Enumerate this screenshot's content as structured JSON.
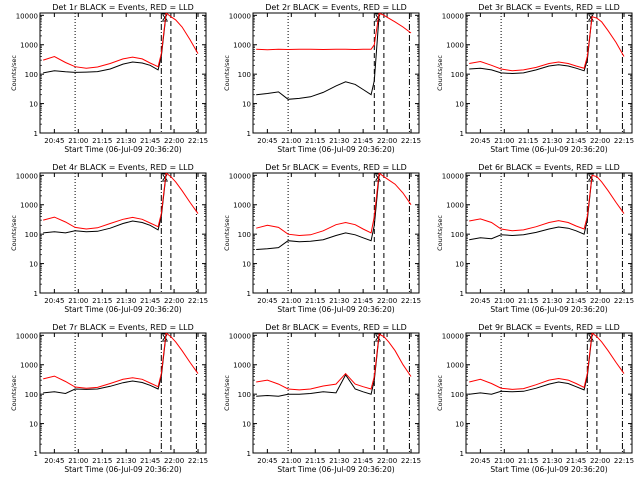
{
  "figure": {
    "xlabel": "Start Time (06-Jul-09 20:36:20)",
    "ylabel": "Counts/sec",
    "time_ticks": [
      "20:45",
      "21:00",
      "21:15",
      "21:30",
      "21:45",
      "22:00",
      "22:15"
    ],
    "y_ticks": [
      "1",
      "10",
      "100",
      "1000",
      "10000"
    ],
    "colors": {
      "events": "#000000",
      "lld": "#ff0000",
      "axes": "#000000",
      "background": "#ffffff"
    }
  },
  "chart_data": [
    {
      "type": "line",
      "title": "Det 1r BLACK = Events, RED = LLD",
      "xlabel": "Start Time (06-Jul-09 20:36:20)",
      "ylabel": "Counts/sec",
      "xlim": [
        "20:36",
        "22:20"
      ],
      "ylim": [
        1,
        12000
      ],
      "yscale": "log",
      "x": [
        "20:38",
        "20:45",
        "20:52",
        "20:58",
        "21:05",
        "21:12",
        "21:20",
        "21:28",
        "21:34",
        "21:40",
        "21:45",
        "21:50",
        "21:52",
        "21:55",
        "21:58",
        "22:01",
        "22:05",
        "22:10",
        "22:15"
      ],
      "series": [
        {
          "name": "Events",
          "values": [
            110,
            130,
            120,
            115,
            118,
            122,
            150,
            220,
            260,
            240,
            200,
            140,
            400,
            11000,
            null,
            null,
            null,
            null,
            null
          ]
        },
        {
          "name": "LLD",
          "values": [
            300,
            400,
            250,
            180,
            160,
            175,
            230,
            330,
            380,
            330,
            240,
            180,
            500,
            12000,
            9000,
            7000,
            4000,
            1500,
            500
          ]
        }
      ],
      "vlines": [
        {
          "x": "20:58",
          "style": "dotted"
        },
        {
          "x": "21:52",
          "style": "dash-dot"
        },
        {
          "x": "21:58",
          "style": "dashed"
        },
        {
          "x": "22:14",
          "style": "dash-dot"
        }
      ]
    },
    {
      "type": "line",
      "title": "Det 2r BLACK = Events, RED = LLD",
      "xlabel": "Start Time (06-Jul-09 20:36:20)",
      "ylabel": "Counts/sec",
      "xlim": [
        "20:36",
        "22:20"
      ],
      "ylim": [
        1,
        12000
      ],
      "yscale": "log",
      "x": [
        "20:38",
        "20:45",
        "20:52",
        "20:58",
        "21:05",
        "21:12",
        "21:20",
        "21:28",
        "21:34",
        "21:40",
        "21:45",
        "21:50",
        "21:52",
        "21:55",
        "21:58",
        "22:01",
        "22:05",
        "22:10",
        "22:15"
      ],
      "series": [
        {
          "name": "Events",
          "values": [
            20,
            22,
            25,
            14,
            15,
            17,
            24,
            40,
            55,
            45,
            30,
            20,
            60,
            10000,
            null,
            null,
            null,
            null,
            null
          ]
        },
        {
          "name": "LLD",
          "values": [
            700,
            680,
            700,
            690,
            700,
            700,
            690,
            700,
            700,
            690,
            700,
            700,
            1000,
            12000,
            10000,
            8000,
            6000,
            4000,
            2500
          ]
        }
      ],
      "vlines": [
        {
          "x": "20:58",
          "style": "dotted"
        },
        {
          "x": "21:52",
          "style": "dashed"
        },
        {
          "x": "21:58",
          "style": "dashed"
        },
        {
          "x": "22:14",
          "style": "dash-dot"
        }
      ]
    },
    {
      "type": "line",
      "title": "Det 3r BLACK = Events, RED = LLD",
      "xlabel": "Start Time (06-Jul-09 20:36:20)",
      "ylabel": "Counts/sec",
      "xlim": [
        "20:36",
        "22:20"
      ],
      "ylim": [
        1,
        12000
      ],
      "yscale": "log",
      "x": [
        "20:38",
        "20:45",
        "20:52",
        "20:58",
        "21:05",
        "21:12",
        "21:20",
        "21:28",
        "21:34",
        "21:40",
        "21:45",
        "21:50",
        "21:52",
        "21:55",
        "21:58",
        "22:01",
        "22:05",
        "22:10",
        "22:15"
      ],
      "series": [
        {
          "name": "Events",
          "values": [
            150,
            160,
            140,
            110,
            105,
            110,
            140,
            190,
            210,
            190,
            160,
            130,
            300,
            10000,
            null,
            null,
            null,
            null,
            null
          ]
        },
        {
          "name": "LLD",
          "values": [
            230,
            270,
            200,
            150,
            130,
            140,
            170,
            230,
            260,
            230,
            190,
            160,
            400,
            9000,
            8000,
            6000,
            3000,
            1200,
            400
          ]
        }
      ],
      "vlines": [
        {
          "x": "20:58",
          "style": "dotted"
        },
        {
          "x": "21:52",
          "style": "dash-dot"
        },
        {
          "x": "21:58",
          "style": "dashed"
        },
        {
          "x": "22:14",
          "style": "dash-dot"
        }
      ]
    },
    {
      "type": "line",
      "title": "Det 4r BLACK = Events, RED = LLD",
      "xlabel": "Start Time (06-Jul-09 20:36:20)",
      "ylabel": "Counts/sec",
      "xlim": [
        "20:36",
        "22:20"
      ],
      "ylim": [
        1,
        12000
      ],
      "yscale": "log",
      "x": [
        "20:38",
        "20:45",
        "20:52",
        "20:58",
        "21:05",
        "21:12",
        "21:20",
        "21:28",
        "21:34",
        "21:40",
        "21:45",
        "21:50",
        "21:52",
        "21:55",
        "21:58",
        "22:01",
        "22:05",
        "22:10",
        "22:15"
      ],
      "series": [
        {
          "name": "Events",
          "values": [
            110,
            120,
            110,
            130,
            120,
            125,
            160,
            230,
            280,
            250,
            200,
            140,
            400,
            11000,
            null,
            null,
            null,
            null,
            null
          ]
        },
        {
          "name": "LLD",
          "values": [
            300,
            380,
            260,
            170,
            150,
            165,
            230,
            320,
            370,
            320,
            240,
            180,
            500,
            12000,
            9000,
            6000,
            3000,
            1200,
            500
          ]
        }
      ],
      "vlines": [
        {
          "x": "20:58",
          "style": "dotted"
        },
        {
          "x": "21:52",
          "style": "dash-dot"
        },
        {
          "x": "21:58",
          "style": "dashed"
        },
        {
          "x": "22:14",
          "style": "dash-dot"
        }
      ]
    },
    {
      "type": "line",
      "title": "Det 5r BLACK = Events, RED = LLD",
      "xlabel": "Start Time (06-Jul-09 20:36:20)",
      "ylabel": "Counts/sec",
      "xlim": [
        "20:36",
        "22:20"
      ],
      "ylim": [
        1,
        12000
      ],
      "yscale": "log",
      "x": [
        "20:38",
        "20:45",
        "20:52",
        "20:58",
        "21:05",
        "21:12",
        "21:20",
        "21:28",
        "21:34",
        "21:40",
        "21:45",
        "21:50",
        "21:52",
        "21:55",
        "21:58",
        "22:01",
        "22:05",
        "22:10",
        "22:15"
      ],
      "series": [
        {
          "name": "Events",
          "values": [
            30,
            32,
            35,
            60,
            55,
            57,
            65,
            90,
            110,
            95,
            75,
            60,
            200,
            10000,
            null,
            null,
            null,
            null,
            null
          ]
        },
        {
          "name": "LLD",
          "values": [
            160,
            200,
            170,
            100,
            90,
            95,
            130,
            210,
            250,
            210,
            150,
            110,
            400,
            12000,
            9000,
            7000,
            5000,
            2500,
            1000
          ]
        }
      ],
      "vlines": [
        {
          "x": "20:58",
          "style": "dotted"
        },
        {
          "x": "21:52",
          "style": "dashed"
        },
        {
          "x": "21:58",
          "style": "dashed"
        },
        {
          "x": "22:14",
          "style": "dash-dot"
        }
      ]
    },
    {
      "type": "line",
      "title": "Det 6r BLACK = Events, RED = LLD",
      "xlabel": "Start Time (06-Jul-09 20:36:20)",
      "ylabel": "Counts/sec",
      "xlim": [
        "20:36",
        "22:20"
      ],
      "ylim": [
        1,
        12000
      ],
      "yscale": "log",
      "x": [
        "20:38",
        "20:45",
        "20:52",
        "20:58",
        "21:05",
        "21:12",
        "21:20",
        "21:28",
        "21:34",
        "21:40",
        "21:45",
        "21:50",
        "21:52",
        "21:55",
        "21:58",
        "22:01",
        "22:05",
        "22:10",
        "22:15"
      ],
      "series": [
        {
          "name": "Events",
          "values": [
            65,
            75,
            70,
            95,
            90,
            95,
            115,
            150,
            175,
            160,
            130,
            100,
            300,
            10000,
            null,
            null,
            null,
            null,
            null
          ]
        },
        {
          "name": "LLD",
          "values": [
            280,
            330,
            250,
            150,
            130,
            140,
            180,
            250,
            290,
            250,
            190,
            150,
            400,
            10000,
            9000,
            6000,
            3000,
            1200,
            500
          ]
        }
      ],
      "vlines": [
        {
          "x": "20:58",
          "style": "dotted"
        },
        {
          "x": "21:52",
          "style": "dash-dot"
        },
        {
          "x": "21:58",
          "style": "dashed"
        },
        {
          "x": "22:14",
          "style": "dash-dot"
        }
      ]
    },
    {
      "type": "line",
      "title": "Det 7r BLACK = Events, RED = LLD",
      "xlabel": "Start Time (06-Jul-09 20:36:20)",
      "ylabel": "Counts/sec",
      "xlim": [
        "20:36",
        "22:20"
      ],
      "ylim": [
        1,
        12000
      ],
      "yscale": "log",
      "x": [
        "20:38",
        "20:45",
        "20:52",
        "20:58",
        "21:05",
        "21:12",
        "21:20",
        "21:28",
        "21:34",
        "21:40",
        "21:45",
        "21:50",
        "21:52",
        "21:55",
        "21:58",
        "22:01",
        "22:05",
        "22:10",
        "22:15"
      ],
      "series": [
        {
          "name": "Events",
          "values": [
            110,
            120,
            105,
            150,
            145,
            150,
            185,
            245,
            280,
            250,
            200,
            150,
            400,
            11000,
            null,
            null,
            null,
            null,
            null
          ]
        },
        {
          "name": "LLD",
          "values": [
            330,
            410,
            270,
            175,
            160,
            170,
            230,
            320,
            360,
            320,
            240,
            180,
            500,
            12000,
            9000,
            6000,
            3000,
            1200,
            500
          ]
        }
      ],
      "vlines": [
        {
          "x": "20:58",
          "style": "dotted"
        },
        {
          "x": "21:52",
          "style": "dash-dot"
        },
        {
          "x": "21:58",
          "style": "dashed"
        },
        {
          "x": "22:14",
          "style": "dash-dot"
        }
      ]
    },
    {
      "type": "line",
      "title": "Det 8r BLACK = Events, RED = LLD",
      "xlabel": "Start Time (06-Jul-09 20:36:20)",
      "ylabel": "Counts/sec",
      "xlim": [
        "20:36",
        "22:20"
      ],
      "ylim": [
        1,
        12000
      ],
      "yscale": "log",
      "x": [
        "20:38",
        "20:45",
        "20:52",
        "20:58",
        "21:05",
        "21:12",
        "21:20",
        "21:28",
        "21:34",
        "21:40",
        "21:45",
        "21:50",
        "21:52",
        "21:55",
        "21:58",
        "22:01",
        "22:05",
        "22:10",
        "22:15"
      ],
      "series": [
        {
          "name": "Events",
          "values": [
            85,
            90,
            85,
            100,
            100,
            105,
            120,
            110,
            450,
            150,
            120,
            100,
            300,
            10000,
            null,
            null,
            null,
            null,
            null
          ]
        },
        {
          "name": "LLD",
          "values": [
            260,
            300,
            220,
            150,
            140,
            150,
            190,
            220,
            500,
            220,
            180,
            150,
            400,
            11000,
            9000,
            6000,
            3000,
            1000,
            400
          ]
        }
      ],
      "vlines": [
        {
          "x": "20:58",
          "style": "dotted"
        },
        {
          "x": "21:52",
          "style": "dashed"
        },
        {
          "x": "21:58",
          "style": "dashed"
        },
        {
          "x": "22:14",
          "style": "dash-dot"
        }
      ]
    },
    {
      "type": "line",
      "title": "Det 9r BLACK = Events, RED = LLD",
      "xlabel": "Start Time (06-Jul-09 20:36:20)",
      "ylabel": "Counts/sec",
      "xlim": [
        "20:36",
        "22:20"
      ],
      "ylim": [
        1,
        12000
      ],
      "yscale": "log",
      "x": [
        "20:38",
        "20:45",
        "20:52",
        "20:58",
        "21:05",
        "21:12",
        "21:20",
        "21:28",
        "21:34",
        "21:40",
        "21:45",
        "21:50",
        "21:52",
        "21:55",
        "21:58",
        "22:01",
        "22:05",
        "22:10",
        "22:15"
      ],
      "series": [
        {
          "name": "Events",
          "values": [
            100,
            110,
            100,
            125,
            120,
            125,
            160,
            220,
            260,
            230,
            180,
            140,
            400,
            11000,
            null,
            null,
            null,
            null,
            null
          ]
        },
        {
          "name": "LLD",
          "values": [
            260,
            320,
            230,
            160,
            145,
            155,
            210,
            300,
            340,
            300,
            230,
            170,
            500,
            12000,
            9000,
            6000,
            3000,
            1200,
            500
          ]
        }
      ],
      "vlines": [
        {
          "x": "20:58",
          "style": "dotted"
        },
        {
          "x": "21:52",
          "style": "dash-dot"
        },
        {
          "x": "21:58",
          "style": "dashed"
        },
        {
          "x": "22:14",
          "style": "dash-dot"
        }
      ]
    }
  ]
}
